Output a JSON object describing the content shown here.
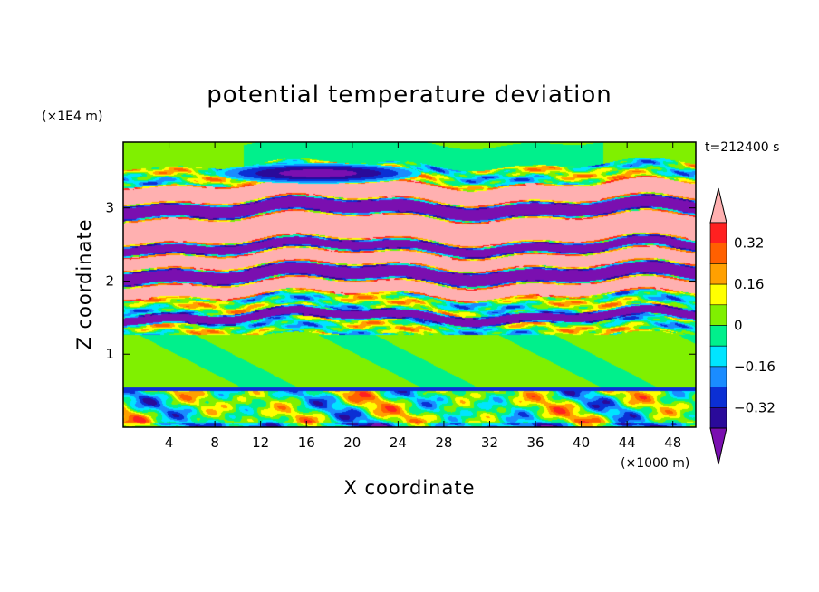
{
  "chart_data": {
    "type": "heatmap",
    "title": "potential temperature deviation",
    "xlabel": "X coordinate",
    "ylabel": "Z coordinate",
    "x_unit": "(×1000 m)",
    "y_unit": "(×1E4 m)",
    "time_label": "t=212400 s",
    "xlim": [
      0,
      50
    ],
    "ylim": [
      0,
      3.9
    ],
    "x_ticks": [
      4,
      8,
      12,
      16,
      20,
      24,
      28,
      32,
      36,
      40,
      44,
      48
    ],
    "y_ticks": [
      1,
      2,
      3
    ],
    "colorbar": {
      "levels": [
        -0.4,
        -0.32,
        -0.24,
        -0.16,
        -0.08,
        0,
        0.08,
        0.16,
        0.24,
        0.32,
        0.4
      ],
      "tick_labels": [
        "0.32",
        "0.16",
        "0",
        "−0.16",
        "−0.32"
      ],
      "tick_values": [
        0.32,
        0.16,
        0,
        -0.16,
        -0.32
      ],
      "colors": [
        "#7a0fb0",
        "#2a0a9a",
        "#0b2fd4",
        "#1a8cff",
        "#00e5ff",
        "#00f08c",
        "#80f000",
        "#ffff00",
        "#ffa000",
        "#ff6000",
        "#ff2020",
        "#ffb0b0"
      ],
      "extend": "both"
    },
    "bands": [
      {
        "z": [
          0.0,
          0.55
        ],
        "pattern": "turbulent",
        "value": "mixed"
      },
      {
        "z": [
          0.55,
          1.25
        ],
        "value": 0.05
      },
      {
        "z": [
          1.25,
          1.45
        ],
        "value": "mixed"
      },
      {
        "z": [
          1.45,
          1.6
        ],
        "value": -0.45
      },
      {
        "z": [
          1.6,
          1.8
        ],
        "value": "mixed"
      },
      {
        "z": [
          1.8,
          2.0
        ],
        "value": 0.45
      },
      {
        "z": [
          2.0,
          2.2
        ],
        "value": -0.45
      },
      {
        "z": [
          2.2,
          2.4
        ],
        "value": 0.45
      },
      {
        "z": [
          2.4,
          2.55
        ],
        "value": -0.45
      },
      {
        "z": [
          2.55,
          2.9
        ],
        "value": 0.45
      },
      {
        "z": [
          2.9,
          3.1
        ],
        "value": -0.45
      },
      {
        "z": [
          3.1,
          3.35
        ],
        "value": 0.45
      },
      {
        "z": [
          3.35,
          3.6
        ],
        "value": "mixed"
      },
      {
        "z": [
          3.6,
          3.9
        ],
        "value": 0.0
      }
    ]
  }
}
